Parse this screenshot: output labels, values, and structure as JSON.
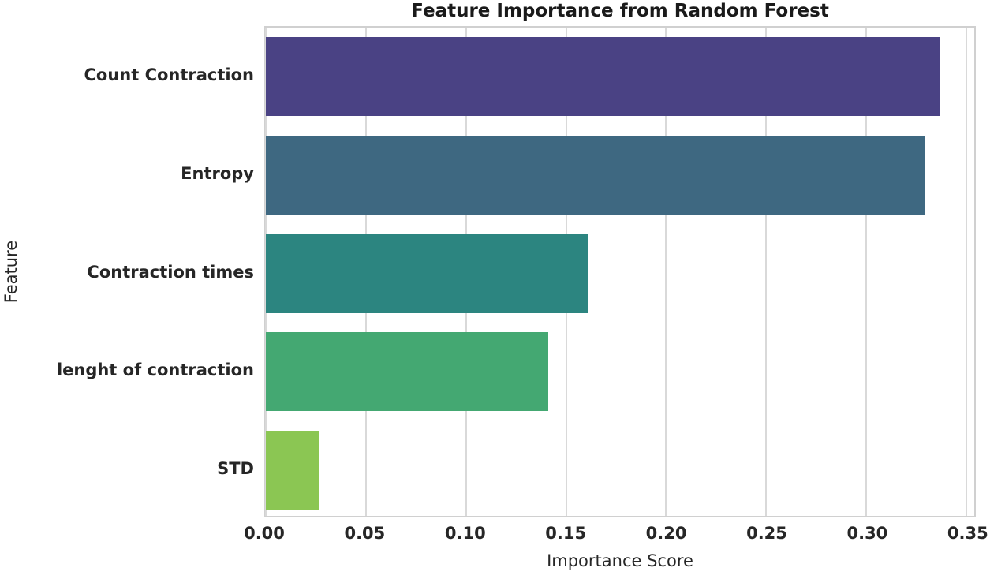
{
  "chart_data": {
    "type": "bar",
    "orientation": "horizontal",
    "title": "Feature Importance from Random Forest",
    "xlabel": "Importance Score",
    "ylabel": "Feature",
    "categories": [
      "Count Contraction",
      "Entropy",
      "Contraction times",
      "lenght of contraction",
      "STD"
    ],
    "values": [
      0.337,
      0.329,
      0.161,
      0.141,
      0.027
    ],
    "bar_colors": [
      "#4a4284",
      "#3e6881",
      "#2c8580",
      "#44a872",
      "#8bc653"
    ],
    "xlim": [
      0,
      0.354
    ],
    "xticks": [
      0.0,
      0.05,
      0.1,
      0.15,
      0.2,
      0.25,
      0.3,
      0.35
    ],
    "xtick_labels": [
      "0.00",
      "0.05",
      "0.10",
      "0.15",
      "0.20",
      "0.25",
      "0.30",
      "0.35"
    ],
    "grid": "vertical",
    "grid_color": "#d9d9d9",
    "spine_color": "#d0d0d0",
    "text_color": "#262626",
    "legend": "none"
  }
}
